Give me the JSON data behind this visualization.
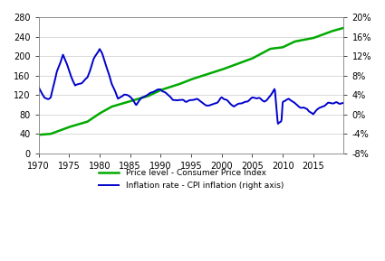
{
  "title": "",
  "left_ylim": [
    0,
    280
  ],
  "right_ylim": [
    -8,
    20
  ],
  "left_yticks": [
    0,
    40,
    80,
    120,
    160,
    200,
    240,
    280
  ],
  "right_yticks": [
    -8,
    -4,
    0,
    4,
    8,
    12,
    16,
    20
  ],
  "right_ytick_labels": [
    "-8%",
    "-4%",
    "0%",
    "4%",
    "8%",
    "12%",
    "16%",
    "20%"
  ],
  "xlim": [
    1970,
    2020
  ],
  "xticks": [
    1970,
    1975,
    1980,
    1985,
    1990,
    1995,
    2000,
    2005,
    2010,
    2015
  ],
  "cpi_color": "#00aa00",
  "inflation_color": "#0000cc",
  "cpi_linewidth": 1.8,
  "inflation_linewidth": 1.4,
  "legend_cpi": "Price level - Consumer Price Index",
  "legend_inflation": "Inflation rate - CPI inflation (right axis)",
  "bg_color": "#ffffff",
  "grid_color": "#cccccc"
}
